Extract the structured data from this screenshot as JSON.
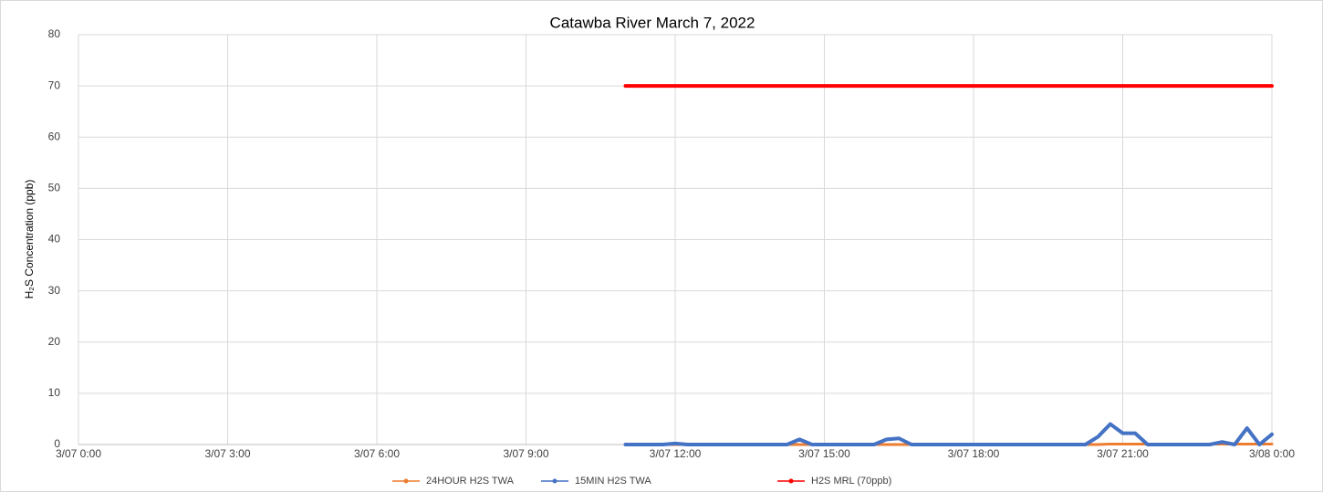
{
  "chart_data": {
    "type": "line",
    "title": "Catawba River March 7, 2022",
    "y_label": "H₂S Concentration (ppb)",
    "x": [
      11,
      11.25,
      11.5,
      11.75,
      12,
      12.25,
      12.5,
      12.75,
      13,
      13.25,
      13.5,
      13.75,
      14,
      14.25,
      14.5,
      14.75,
      15,
      15.25,
      15.5,
      15.75,
      16,
      16.25,
      16.5,
      16.75,
      17,
      17.25,
      17.5,
      17.75,
      18,
      18.25,
      18.5,
      18.75,
      19,
      19.25,
      19.5,
      19.75,
      20,
      20.25,
      20.5,
      20.75,
      21,
      21.25,
      21.5,
      21.75,
      22,
      22.25,
      22.5,
      22.75,
      23,
      23.25,
      23.5,
      23.75,
      24
    ],
    "series": [
      {
        "name": "24HOUR H2S TWA",
        "color": "#ed7d31",
        "width": 3,
        "values": [
          0,
          0,
          0,
          0,
          0,
          0,
          0,
          0,
          0,
          0,
          0,
          0,
          0,
          0,
          0,
          0,
          0,
          0,
          0,
          0,
          0,
          0,
          0,
          0,
          0,
          0,
          0,
          0,
          0,
          0,
          0,
          0,
          0,
          0,
          0,
          0,
          0,
          0,
          0,
          0.1,
          0.1,
          0.1,
          0.1,
          0.1,
          0.1,
          0.1,
          0.1,
          0.1,
          0.1,
          0.1,
          0.1,
          0.1,
          0.1
        ]
      },
      {
        "name": "15MIN H2S TWA",
        "color": "#4472c4",
        "width": 4,
        "values": [
          0,
          0,
          0,
          0,
          0.2,
          0,
          0,
          0,
          0,
          0,
          0,
          0,
          0,
          0,
          1,
          0,
          0,
          0,
          0,
          0,
          0,
          1,
          1.2,
          0,
          0,
          0,
          0,
          0,
          0,
          0,
          0,
          0,
          0,
          0,
          0,
          0,
          0,
          0,
          1.5,
          4,
          2.2,
          2.2,
          0,
          0,
          0,
          0,
          0,
          0,
          0.5,
          0,
          3.2,
          0,
          2
        ]
      },
      {
        "name": "H2S MRL (70ppb)",
        "color": "#ff0000",
        "width": 4,
        "values": [
          70,
          70,
          70,
          70,
          70,
          70,
          70,
          70,
          70,
          70,
          70,
          70,
          70,
          70,
          70,
          70,
          70,
          70,
          70,
          70,
          70,
          70,
          70,
          70,
          70,
          70,
          70,
          70,
          70,
          70,
          70,
          70,
          70,
          70,
          70,
          70,
          70,
          70,
          70,
          70,
          70,
          70,
          70,
          70,
          70,
          70,
          70,
          70,
          70,
          70,
          70,
          70,
          70
        ]
      }
    ],
    "xlim": [
      0,
      24
    ],
    "xticks": [
      {
        "value": 0,
        "label": "3/07 0:00"
      },
      {
        "value": 3,
        "label": "3/07 3:00"
      },
      {
        "value": 6,
        "label": "3/07 6:00"
      },
      {
        "value": 9,
        "label": "3/07 9:00"
      },
      {
        "value": 12,
        "label": "3/07 12:00"
      },
      {
        "value": 15,
        "label": "3/07 15:00"
      },
      {
        "value": 18,
        "label": "3/07 18:00"
      },
      {
        "value": 21,
        "label": "3/07 21:00"
      },
      {
        "value": 24,
        "label": "3/08 0:00"
      }
    ],
    "ylim": [
      0,
      80
    ],
    "yticks": [
      0,
      10,
      20,
      30,
      40,
      50,
      60,
      70,
      80
    ],
    "grid": true,
    "legend": "bottom"
  }
}
